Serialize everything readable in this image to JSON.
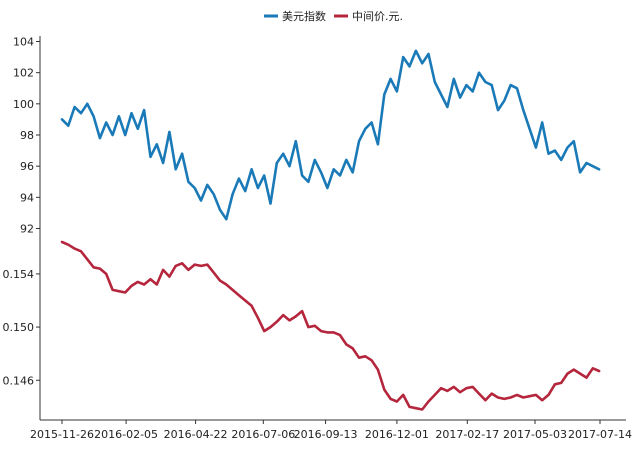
{
  "chart_data": {
    "type": "line",
    "legend": {
      "placement": "top-center",
      "items": [
        "美元指数",
        "中间价.元."
      ]
    },
    "x_dates": [
      "2015-11-26",
      "2016-02-05",
      "2016-04-22",
      "2016-07-06",
      "2016-09-13",
      "2016-12-01",
      "2017-02-17",
      "2017-05-03",
      "2017-07-14"
    ],
    "panels": [
      {
        "series_name": "美元指数",
        "color": "#1a7ab8",
        "ylim": [
          92,
          104
        ],
        "yticks": [
          "92",
          "94",
          "96",
          "98",
          "100",
          "102",
          "104"
        ],
        "values": [
          [
            "2015-11-26",
            99.0
          ],
          [
            "2015-12-03",
            98.6
          ],
          [
            "2015-12-10",
            99.8
          ],
          [
            "2015-12-17",
            99.4
          ],
          [
            "2015-12-24",
            100.0
          ],
          [
            "2015-12-31",
            99.2
          ],
          [
            "2016-01-07",
            97.8
          ],
          [
            "2016-01-14",
            98.8
          ],
          [
            "2016-01-21",
            98.0
          ],
          [
            "2016-01-28",
            99.2
          ],
          [
            "2016-02-04",
            98.0
          ],
          [
            "2016-02-11",
            99.4
          ],
          [
            "2016-02-18",
            98.4
          ],
          [
            "2016-02-25",
            99.6
          ],
          [
            "2016-03-03",
            96.6
          ],
          [
            "2016-03-10",
            97.4
          ],
          [
            "2016-03-17",
            96.2
          ],
          [
            "2016-03-24",
            98.2
          ],
          [
            "2016-03-31",
            95.8
          ],
          [
            "2016-04-07",
            96.8
          ],
          [
            "2016-04-14",
            95.0
          ],
          [
            "2016-04-21",
            94.6
          ],
          [
            "2016-04-28",
            93.8
          ],
          [
            "2016-05-05",
            94.8
          ],
          [
            "2016-05-12",
            94.2
          ],
          [
            "2016-05-19",
            93.2
          ],
          [
            "2016-05-26",
            92.6
          ],
          [
            "2016-06-02",
            94.2
          ],
          [
            "2016-06-09",
            95.2
          ],
          [
            "2016-06-16",
            94.4
          ],
          [
            "2016-06-23",
            95.8
          ],
          [
            "2016-06-30",
            94.6
          ],
          [
            "2016-07-07",
            95.4
          ],
          [
            "2016-07-14",
            93.6
          ],
          [
            "2016-07-21",
            96.2
          ],
          [
            "2016-07-28",
            96.8
          ],
          [
            "2016-08-04",
            96.0
          ],
          [
            "2016-08-11",
            97.6
          ],
          [
            "2016-08-18",
            95.4
          ],
          [
            "2016-08-25",
            95.0
          ],
          [
            "2016-09-01",
            96.4
          ],
          [
            "2016-09-08",
            95.6
          ],
          [
            "2016-09-15",
            94.6
          ],
          [
            "2016-09-22",
            95.8
          ],
          [
            "2016-09-29",
            95.4
          ],
          [
            "2016-10-06",
            96.4
          ],
          [
            "2016-10-13",
            95.6
          ],
          [
            "2016-10-20",
            97.6
          ],
          [
            "2016-10-27",
            98.4
          ],
          [
            "2016-11-03",
            98.8
          ],
          [
            "2016-11-10",
            97.4
          ],
          [
            "2016-11-17",
            100.6
          ],
          [
            "2016-11-24",
            101.6
          ],
          [
            "2016-12-01",
            100.8
          ],
          [
            "2016-12-08",
            103.0
          ],
          [
            "2016-12-15",
            102.4
          ],
          [
            "2016-12-22",
            103.4
          ],
          [
            "2016-12-29",
            102.6
          ],
          [
            "2017-01-05",
            103.2
          ],
          [
            "2017-01-12",
            101.4
          ],
          [
            "2017-01-19",
            100.6
          ],
          [
            "2017-01-26",
            99.8
          ],
          [
            "2017-02-02",
            101.6
          ],
          [
            "2017-02-09",
            100.4
          ],
          [
            "2017-02-16",
            101.2
          ],
          [
            "2017-02-23",
            100.8
          ],
          [
            "2017-03-02",
            102.0
          ],
          [
            "2017-03-09",
            101.4
          ],
          [
            "2017-03-16",
            101.2
          ],
          [
            "2017-03-23",
            99.6
          ],
          [
            "2017-03-30",
            100.2
          ],
          [
            "2017-04-06",
            101.2
          ],
          [
            "2017-04-13",
            101.0
          ],
          [
            "2017-04-20",
            99.6
          ],
          [
            "2017-04-27",
            98.4
          ],
          [
            "2017-05-04",
            97.2
          ],
          [
            "2017-05-11",
            98.8
          ],
          [
            "2017-05-18",
            96.8
          ],
          [
            "2017-05-25",
            97.0
          ],
          [
            "2017-06-01",
            96.4
          ],
          [
            "2017-06-08",
            97.2
          ],
          [
            "2017-06-15",
            97.6
          ],
          [
            "2017-06-22",
            95.6
          ],
          [
            "2017-06-29",
            96.2
          ],
          [
            "2017-07-06",
            96.0
          ],
          [
            "2017-07-13",
            95.8
          ]
        ]
      },
      {
        "series_name": "中间价.元.",
        "color": "#b5263d",
        "ylim": [
          0.1435,
          0.1564
        ],
        "yticks": [
          "0.146",
          "0.150",
          "0.154"
        ],
        "values": [
          [
            "2015-11-26",
            0.1564
          ],
          [
            "2015-12-03",
            0.1562
          ],
          [
            "2015-12-10",
            0.1559
          ],
          [
            "2015-12-17",
            0.1557
          ],
          [
            "2015-12-24",
            0.1551
          ],
          [
            "2015-12-31",
            0.1545
          ],
          [
            "2016-01-07",
            0.1544
          ],
          [
            "2016-01-14",
            0.154
          ],
          [
            "2016-01-21",
            0.1528
          ],
          [
            "2016-01-28",
            0.1527
          ],
          [
            "2016-02-04",
            0.1526
          ],
          [
            "2016-02-11",
            0.1531
          ],
          [
            "2016-02-18",
            0.1534
          ],
          [
            "2016-02-25",
            0.1532
          ],
          [
            "2016-03-03",
            0.1536
          ],
          [
            "2016-03-10",
            0.1532
          ],
          [
            "2016-03-17",
            0.1543
          ],
          [
            "2016-03-24",
            0.1538
          ],
          [
            "2016-03-31",
            0.1546
          ],
          [
            "2016-04-07",
            0.1548
          ],
          [
            "2016-04-14",
            0.1543
          ],
          [
            "2016-04-21",
            0.1547
          ],
          [
            "2016-04-28",
            0.1546
          ],
          [
            "2016-05-05",
            0.1547
          ],
          [
            "2016-05-12",
            0.1541
          ],
          [
            "2016-05-19",
            0.1535
          ],
          [
            "2016-05-26",
            0.1532
          ],
          [
            "2016-06-02",
            0.1528
          ],
          [
            "2016-06-09",
            0.1524
          ],
          [
            "2016-06-16",
            0.152
          ],
          [
            "2016-06-23",
            0.1516
          ],
          [
            "2016-06-30",
            0.1507
          ],
          [
            "2016-07-07",
            0.1497
          ],
          [
            "2016-07-14",
            0.15
          ],
          [
            "2016-07-21",
            0.1504
          ],
          [
            "2016-07-28",
            0.1509
          ],
          [
            "2016-08-04",
            0.1505
          ],
          [
            "2016-08-11",
            0.1508
          ],
          [
            "2016-08-18",
            0.1512
          ],
          [
            "2016-08-25",
            0.15
          ],
          [
            "2016-09-01",
            0.1501
          ],
          [
            "2016-09-08",
            0.1497
          ],
          [
            "2016-09-15",
            0.1496
          ],
          [
            "2016-09-22",
            0.1496
          ],
          [
            "2016-09-29",
            0.1494
          ],
          [
            "2016-10-06",
            0.1487
          ],
          [
            "2016-10-13",
            0.1484
          ],
          [
            "2016-10-20",
            0.1477
          ],
          [
            "2016-10-27",
            0.1478
          ],
          [
            "2016-11-03",
            0.1475
          ],
          [
            "2016-11-10",
            0.1468
          ],
          [
            "2016-11-17",
            0.1453
          ],
          [
            "2016-11-24",
            0.1446
          ],
          [
            "2016-12-01",
            0.1444
          ],
          [
            "2016-12-08",
            0.1449
          ],
          [
            "2016-12-15",
            0.144
          ],
          [
            "2016-12-22",
            0.1439
          ],
          [
            "2016-12-29",
            0.1438
          ],
          [
            "2017-01-05",
            0.1444
          ],
          [
            "2017-01-12",
            0.1449
          ],
          [
            "2017-01-19",
            0.1454
          ],
          [
            "2017-01-26",
            0.1452
          ],
          [
            "2017-02-02",
            0.1455
          ],
          [
            "2017-02-09",
            0.1451
          ],
          [
            "2017-02-16",
            0.1454
          ],
          [
            "2017-02-23",
            0.1455
          ],
          [
            "2017-03-02",
            0.145
          ],
          [
            "2017-03-09",
            0.1445
          ],
          [
            "2017-03-16",
            0.145
          ],
          [
            "2017-03-23",
            0.1447
          ],
          [
            "2017-03-30",
            0.1446
          ],
          [
            "2017-04-06",
            0.1447
          ],
          [
            "2017-04-13",
            0.1449
          ],
          [
            "2017-04-20",
            0.1447
          ],
          [
            "2017-04-27",
            0.1448
          ],
          [
            "2017-05-04",
            0.1449
          ],
          [
            "2017-05-11",
            0.1445
          ],
          [
            "2017-05-18",
            0.1449
          ],
          [
            "2017-05-25",
            0.1457
          ],
          [
            "2017-06-01",
            0.1458
          ],
          [
            "2017-06-08",
            0.1465
          ],
          [
            "2017-06-15",
            0.1468
          ],
          [
            "2017-06-22",
            0.1465
          ],
          [
            "2017-06-29",
            0.1462
          ],
          [
            "2017-07-06",
            0.1469
          ],
          [
            "2017-07-13",
            0.1467
          ]
        ]
      }
    ]
  }
}
